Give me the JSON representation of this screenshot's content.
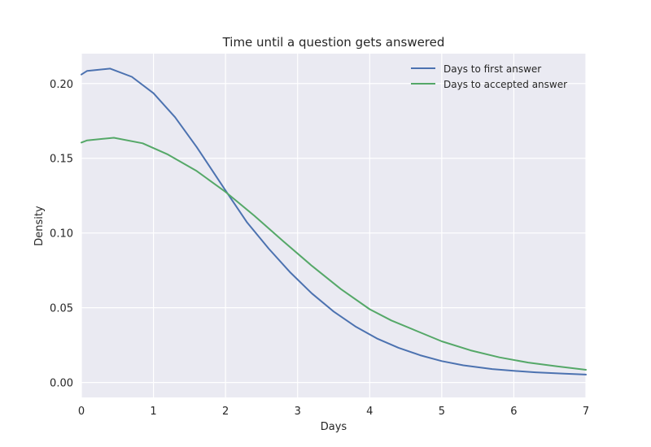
{
  "chart_data": {
    "type": "line",
    "title": "Time until a question gets answered",
    "xlabel": "Days",
    "ylabel": "Density",
    "xlim": [
      0,
      7
    ],
    "ylim": [
      -0.01,
      0.22
    ],
    "xticks": [
      0,
      1,
      2,
      3,
      4,
      5,
      6,
      7
    ],
    "xtick_labels": [
      "0",
      "1",
      "2",
      "3",
      "4",
      "5",
      "6",
      "7"
    ],
    "yticks": [
      0.0,
      0.05,
      0.1,
      0.15,
      0.2
    ],
    "ytick_labels": [
      "0.00",
      "0.05",
      "0.10",
      "0.15",
      "0.20"
    ],
    "grid": true,
    "legend_position": "top-right",
    "background": "#eaeaf2",
    "series": [
      {
        "name": "Days to first answer",
        "color": "#4c72b0",
        "x": [
          0,
          0.08,
          0.4,
          0.7,
          1.0,
          1.3,
          1.6,
          2.0,
          2.3,
          2.6,
          2.9,
          3.2,
          3.5,
          3.8,
          4.1,
          4.4,
          4.7,
          5.0,
          5.3,
          5.7,
          6.0,
          6.3,
          6.7,
          7.0
        ],
        "y": [
          0.206,
          0.2085,
          0.21,
          0.2045,
          0.1935,
          0.1775,
          0.1575,
          0.1285,
          0.107,
          0.0895,
          0.0735,
          0.0595,
          0.0475,
          0.0375,
          0.0295,
          0.0232,
          0.0182,
          0.0143,
          0.0115,
          0.009,
          0.0078,
          0.0068,
          0.0059,
          0.0053
        ]
      },
      {
        "name": "Days to accepted answer",
        "color": "#55a868",
        "x": [
          0,
          0.08,
          0.45,
          0.85,
          1.2,
          1.6,
          2.0,
          2.4,
          2.8,
          3.2,
          3.6,
          4.0,
          4.3,
          4.7,
          5.0,
          5.4,
          5.8,
          6.2,
          6.6,
          7.0
        ],
        "y": [
          0.1605,
          0.162,
          0.1637,
          0.16,
          0.1525,
          0.1415,
          0.1275,
          0.1115,
          0.0945,
          0.078,
          0.0625,
          0.049,
          0.0415,
          0.0335,
          0.0275,
          0.0215,
          0.0168,
          0.0133,
          0.0108,
          0.0085
        ]
      }
    ]
  }
}
